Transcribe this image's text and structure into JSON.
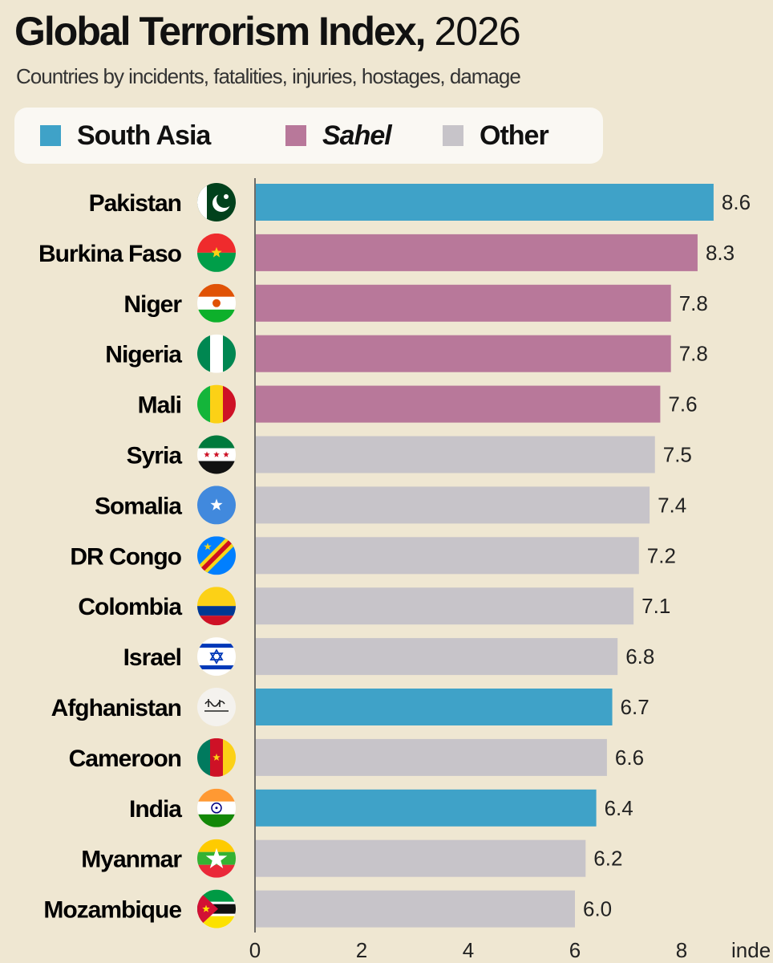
{
  "colors": {
    "background": "#efe7d2",
    "south_asia": "#3fa2c8",
    "sahel": "#b8789a",
    "other": "#c7c4c9"
  },
  "chart_data": {
    "type": "bar",
    "orientation": "horizontal",
    "title": "Global Terrorism Index,",
    "title_year": "2026",
    "subtitle": "Countries by incidents, fatalities, injuries, hostages, damage",
    "xlabel": "inde",
    "xlim": [
      0,
      9.0
    ],
    "xticks": [
      "0",
      "2",
      "4",
      "6",
      "8"
    ],
    "legend": [
      {
        "key": "south_asia",
        "label": "South Asia",
        "italic": false
      },
      {
        "key": "sahel",
        "label": "Sahel",
        "italic": true
      },
      {
        "key": "other",
        "label": "Other",
        "italic": false
      }
    ],
    "legend_position": "top",
    "categories": [
      "Pakistan",
      "Burkina Faso",
      "Niger",
      "Nigeria",
      "Mali",
      "Syria",
      "Somalia",
      "DR Congo",
      "Colombia",
      "Israel",
      "Afghanistan",
      "Cameroon",
      "India",
      "Myanmar",
      "Mozambique"
    ],
    "values": [
      8.6,
      8.3,
      7.8,
      7.8,
      7.6,
      7.5,
      7.4,
      7.2,
      7.1,
      6.8,
      6.7,
      6.6,
      6.4,
      6.2,
      6.0
    ],
    "value_labels": [
      "8.6",
      "8.3",
      "7.8",
      "7.8",
      "7.6",
      "7.5",
      "7.4",
      "7.2",
      "7.1",
      "6.8",
      "6.7",
      "6.6",
      "6.4",
      "6.2",
      "6.0"
    ],
    "groups": [
      "south_asia",
      "sahel",
      "sahel",
      "sahel",
      "sahel",
      "other",
      "other",
      "other",
      "other",
      "other",
      "south_asia",
      "other",
      "south_asia",
      "other",
      "other"
    ],
    "flag_icons": [
      "pakistan-flag-icon",
      "burkina-faso-flag-icon",
      "niger-flag-icon",
      "nigeria-flag-icon",
      "mali-flag-icon",
      "syria-flag-icon",
      "somalia-flag-icon",
      "dr-congo-flag-icon",
      "colombia-flag-icon",
      "israel-flag-icon",
      "afghanistan-flag-icon",
      "cameroon-flag-icon",
      "india-flag-icon",
      "myanmar-flag-icon",
      "mozambique-flag-icon"
    ],
    "grid": false
  }
}
